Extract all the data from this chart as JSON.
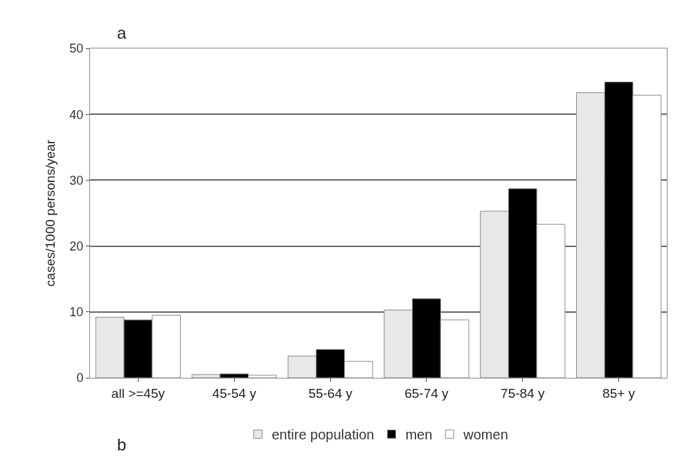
{
  "chart_data": {
    "type": "bar",
    "ylabel": "cases/1000 persons/year",
    "categories": [
      "all >=45y",
      "45-54 y",
      "55-64 y",
      "65-74 y",
      "75-84 y",
      "85+ y"
    ],
    "series": [
      {
        "name": "entire population",
        "color": "#e8e8e8",
        "values": [
          9.2,
          0.5,
          3.3,
          10.3,
          25.3,
          43.3
        ]
      },
      {
        "name": "men",
        "color": "#000000",
        "values": [
          8.8,
          0.6,
          4.3,
          12.0,
          28.7,
          44.9
        ]
      },
      {
        "name": "women",
        "color": "#ffffff",
        "values": [
          9.5,
          0.4,
          2.5,
          8.8,
          23.3,
          42.9
        ]
      }
    ],
    "ylim": [
      0,
      50
    ],
    "yticks": [
      0,
      10,
      20,
      30,
      40,
      50
    ],
    "grid": "y",
    "legend": "bottom",
    "annotations": [
      "a",
      "b"
    ]
  }
}
